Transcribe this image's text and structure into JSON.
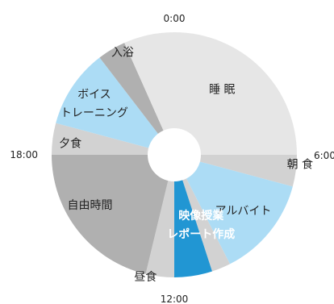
{
  "chart_data": {
    "type": "pie",
    "title": "",
    "clock_labels": [
      "0:00",
      "6:00",
      "12:00",
      "18:00"
    ],
    "start_hour": 0,
    "total_hours": 24,
    "slices": [
      {
        "label": "睡 眠",
        "start": 0.0,
        "end": 6.0,
        "color": "#e6e6e6"
      },
      {
        "label": "朝 食",
        "start": 6.0,
        "end": 7.0,
        "color": "#d2d2d2"
      },
      {
        "label": "アルバイト",
        "start": 7.0,
        "end": 10.2,
        "color": "#acdcf5"
      },
      {
        "label": "",
        "start": 10.2,
        "end": 10.8,
        "color": "#d2d2d2"
      },
      {
        "label": "映像授業\nレポート作成",
        "start": 10.8,
        "end": 12.0,
        "color": "#2196d3",
        "label_color": "#ffffff"
      },
      {
        "label": "昼食",
        "start": 12.0,
        "end": 12.9,
        "color": "#d2d2d2"
      },
      {
        "label": "自由時間",
        "start": 12.9,
        "end": 18.0,
        "color": "#b0b0b0"
      },
      {
        "label": "夕食",
        "start": 18.0,
        "end": 19.0,
        "color": "#d2d2d2"
      },
      {
        "label": "ボイス\nトレーニング",
        "start": 19.0,
        "end": 21.5,
        "color": "#acdcf5"
      },
      {
        "label": "入浴",
        "start": 21.5,
        "end": 22.4,
        "color": "#b0b0b0"
      },
      {
        "label": "",
        "start": 22.4,
        "end": 24.0,
        "color": "#e6e6e6"
      }
    ]
  }
}
